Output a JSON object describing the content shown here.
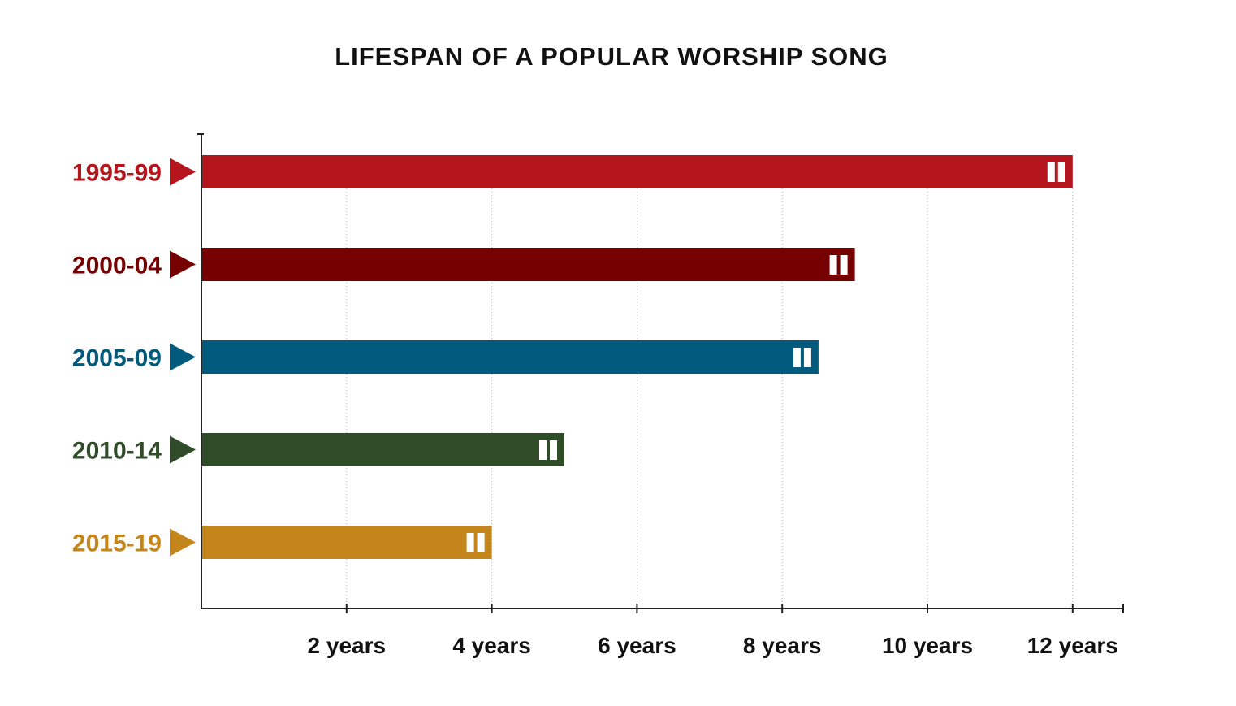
{
  "chart_data": {
    "type": "bar",
    "orientation": "horizontal",
    "title": "LIFESPAN OF A POPULAR WORSHIP SONG",
    "categories": [
      "1995-99",
      "2000-04",
      "2005-09",
      "2010-14",
      "2015-19"
    ],
    "values": [
      12,
      9,
      8.5,
      5,
      4
    ],
    "colors": [
      "#b5151d",
      "#760000",
      "#025a7c",
      "#2f4b28",
      "#c4861a"
    ],
    "xticks": [
      2,
      4,
      6,
      8,
      10,
      12
    ],
    "xtick_labels": [
      "2 years",
      "4 years",
      "6 years",
      "8 years",
      "10 years",
      "12 years"
    ],
    "xlim": [
      0,
      12.7
    ],
    "xlabel": "",
    "ylabel": "",
    "grid": "vertical-dotted",
    "bar_marker": "pause-icon"
  }
}
